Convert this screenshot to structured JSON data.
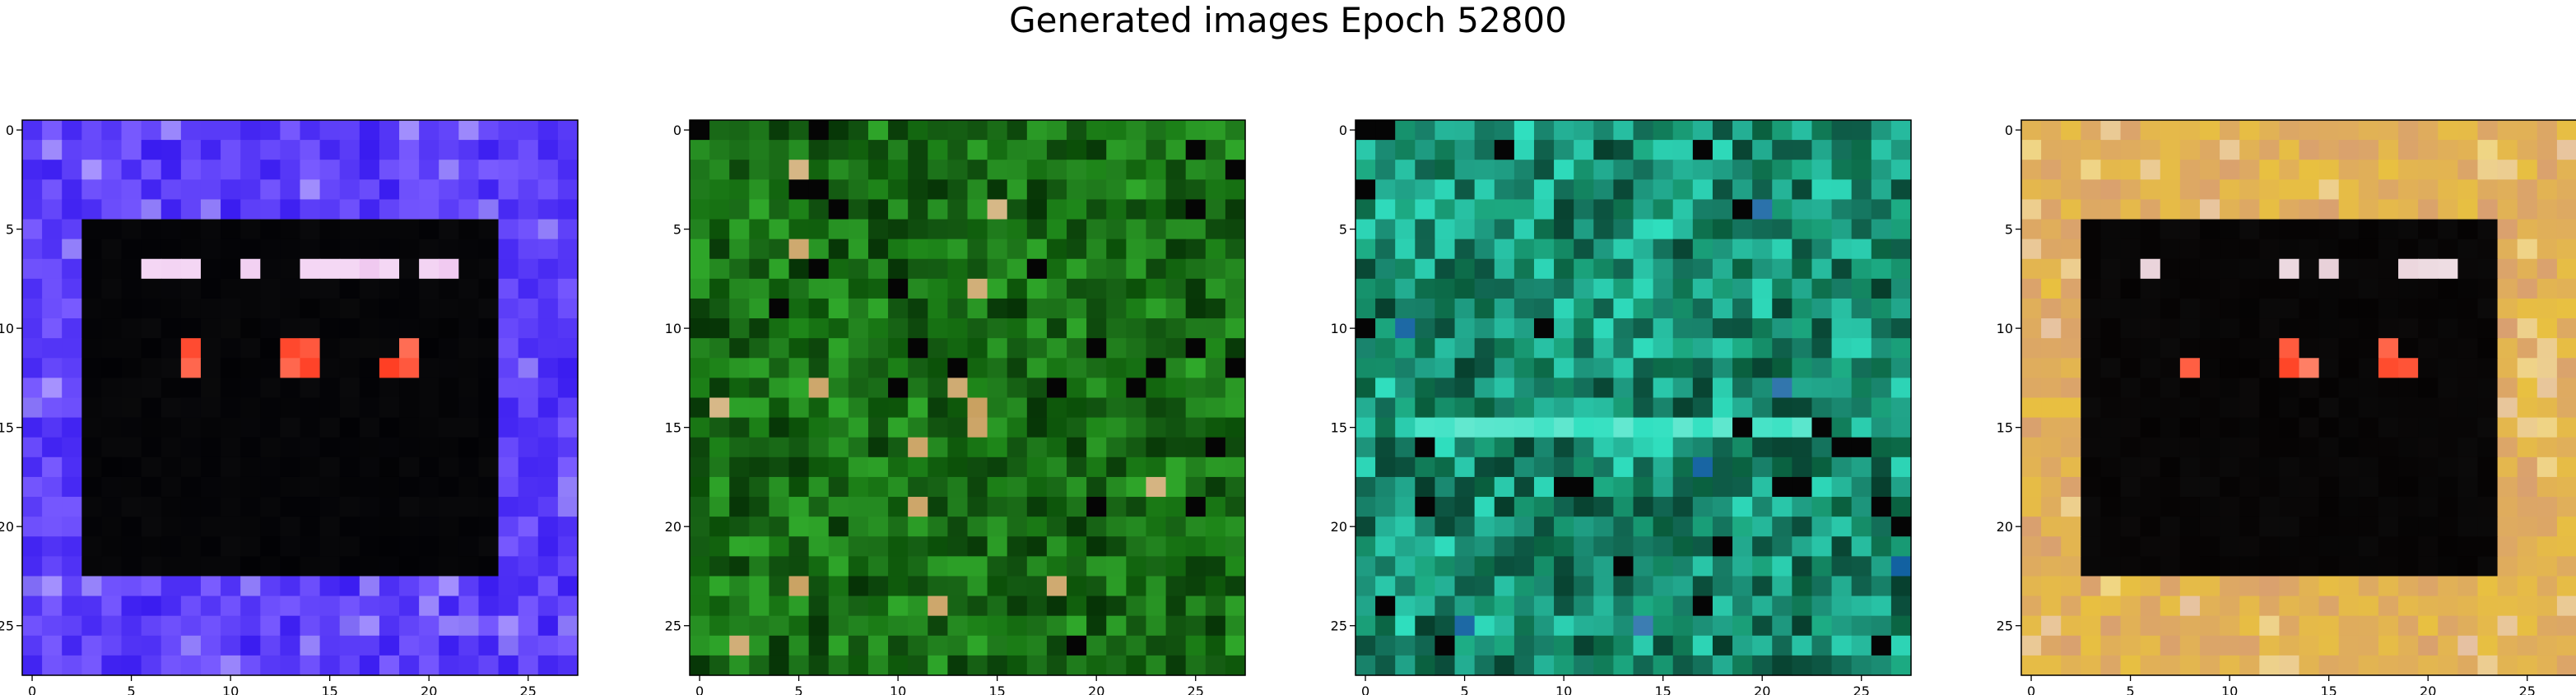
{
  "figure": {
    "title": "Generated images Epoch 52800"
  },
  "chart_data": {
    "type": "heatmap",
    "title": "Generated images Epoch 52800",
    "grid": false,
    "grid_size": [
      28,
      28
    ],
    "x_ticks": [
      0,
      5,
      10,
      15,
      20,
      25
    ],
    "y_ticks": [
      0,
      5,
      10,
      15,
      20,
      25
    ],
    "xlim": [
      -0.5,
      27.5
    ],
    "ylim": [
      27.5,
      -0.5
    ],
    "panels": [
      {
        "style": "frame",
        "colors": {
          "border": "#3a1cf0",
          "border_alt": "#7a5cff",
          "inner": "#020205",
          "highlight": "#f0c8f0",
          "spot": "#ff3b20"
        }
      },
      {
        "style": "noise",
        "colors": {
          "base": "#0f6a0a",
          "light": "#2fa82a",
          "dark": "#063306",
          "accent": "#c9a060"
        }
      },
      {
        "style": "noise2",
        "colors": {
          "base": "#0a7a4a",
          "light": "#30e0c0",
          "dark": "#063b2a",
          "accent": "#1060a0"
        }
      },
      {
        "style": "frame",
        "colors": {
          "border": "#d9a070",
          "border_alt": "#e8c040",
          "inner": "#050303",
          "highlight": "#e8d0d8",
          "spot": "#ff3010"
        }
      }
    ]
  }
}
